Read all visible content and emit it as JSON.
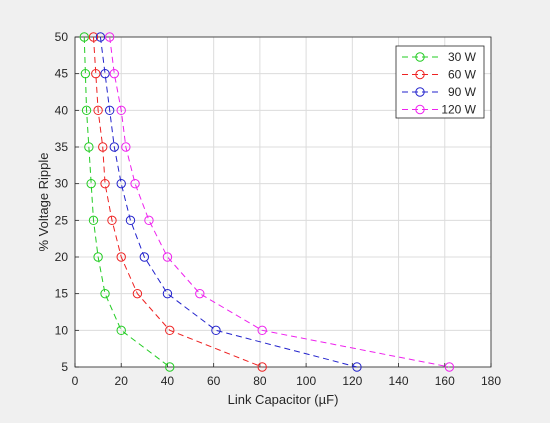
{
  "chart_data": {
    "type": "line",
    "title": "",
    "xlabel": "Link Capacitor (µF)",
    "ylabel": "% Voltage Ripple",
    "xlim": [
      0,
      180
    ],
    "ylim": [
      5,
      50
    ],
    "xticks": [
      0,
      20,
      40,
      60,
      80,
      100,
      120,
      140,
      160,
      180
    ],
    "yticks": [
      5,
      10,
      15,
      20,
      25,
      30,
      35,
      40,
      45,
      50
    ],
    "grid": true,
    "legend_position": "top-right",
    "marker": "circle",
    "line_style": "dashed",
    "y": [
      50,
      45,
      40,
      35,
      30,
      25,
      20,
      15,
      10,
      5
    ],
    "series": [
      {
        "name": "30 W",
        "color": "#22cc22",
        "x": [
          4,
          4.5,
          5,
          6,
          7,
          8,
          10,
          13,
          20,
          41
        ]
      },
      {
        "name": "60 W",
        "color": "#ee2222",
        "x": [
          8,
          9,
          10,
          12,
          13,
          16,
          20,
          27,
          41,
          81
        ]
      },
      {
        "name": "90 W",
        "color": "#2222cc",
        "x": [
          11,
          13,
          15,
          17,
          20,
          24,
          30,
          40,
          61,
          122
        ]
      },
      {
        "name": "120 W",
        "color": "#ee22ee",
        "x": [
          15,
          17,
          20,
          22,
          26,
          32,
          40,
          54,
          81,
          162
        ]
      }
    ]
  }
}
